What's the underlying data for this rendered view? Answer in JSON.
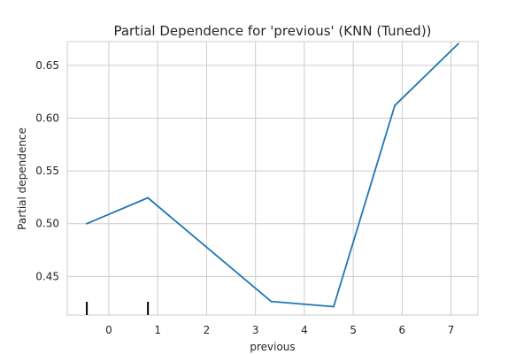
{
  "chart_data": {
    "type": "line",
    "title": "Partial Dependence for 'previous' (KNN (Tuned))",
    "xlabel": "previous",
    "ylabel": "Partial dependence",
    "xlim": [
      -0.85,
      7.55
    ],
    "ylim": [
      0.4134,
      0.6725
    ],
    "x_ticks": [
      0,
      1,
      2,
      3,
      4,
      5,
      6,
      7
    ],
    "x_tick_labels": [
      "0",
      "1",
      "2",
      "3",
      "4",
      "5",
      "6",
      "7"
    ],
    "y_ticks": [
      0.45,
      0.5,
      0.55,
      0.6,
      0.65
    ],
    "y_tick_labels": [
      "0.45",
      "0.50",
      "0.55",
      "0.60",
      "0.65"
    ],
    "grid": true,
    "series": [
      {
        "color": "#1f77b4",
        "x": [
          -0.45,
          0.8,
          3.32,
          4.6,
          5.85,
          7.15
        ],
        "y": [
          0.5,
          0.5245,
          0.4263,
          0.4214,
          0.612,
          0.6705
        ]
      }
    ],
    "rug": {
      "color": "#000000",
      "x": [
        -0.45,
        0.8
      ]
    }
  }
}
